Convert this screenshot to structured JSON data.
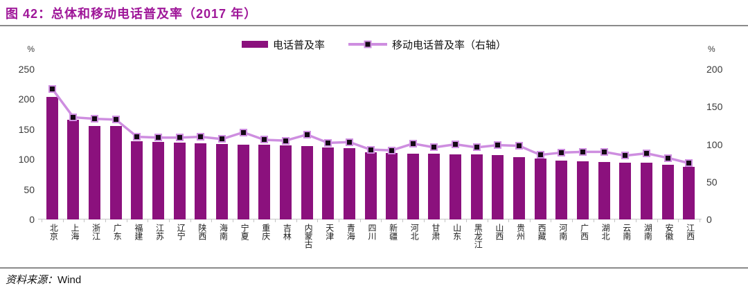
{
  "header": {
    "title": "图 42：总体和移动电话普及率（2017 年）"
  },
  "legend": {
    "bar_label": "电话普及率",
    "line_label": "移动电话普及率（右轴）"
  },
  "footer": {
    "source_label": "资料来源：",
    "source_value": "Wind"
  },
  "colors": {
    "title": "#9F1799",
    "bar": "#8B117D",
    "line": "#CE8EE0",
    "marker": "#140914",
    "separator": "#8A8A8A",
    "axis_text": "#3A3A3A"
  },
  "chart_data": {
    "type": "bar",
    "subtype": "bar+line-dual-axis",
    "title": "总体和移动电话普及率（2017 年）",
    "grid": false,
    "legend_position": "top",
    "categories": [
      "北京",
      "上海",
      "浙江",
      "广东",
      "福建",
      "江苏",
      "辽宁",
      "陕西",
      "海南",
      "宁夏",
      "重庆",
      "吉林",
      "内蒙古",
      "天津",
      "青海",
      "四川",
      "新疆",
      "河北",
      "甘肃",
      "山东",
      "黑龙江",
      "山西",
      "贵州",
      "西藏",
      "河南",
      "广西",
      "湖北",
      "云南",
      "湖南",
      "安徽",
      "江西"
    ],
    "series": [
      {
        "name": "电话普及率",
        "type": "bar",
        "axis": "left",
        "values": [
          204,
          166,
          156,
          155,
          130,
          129,
          128,
          127,
          126,
          125,
          124,
          123,
          122,
          120,
          119,
          112,
          111,
          110,
          109,
          108,
          108,
          107,
          104,
          101,
          98,
          97,
          96,
          95,
          94,
          91,
          88
        ]
      },
      {
        "name": "移动电话普及率（右轴）",
        "type": "line",
        "axis": "right",
        "values": [
          174,
          136,
          134,
          133,
          110,
          109,
          109,
          110,
          107,
          116,
          106,
          105,
          113,
          102,
          103,
          93,
          92,
          101,
          96,
          100,
          96,
          99,
          98,
          86,
          89,
          90,
          90,
          85,
          88,
          82,
          75
        ]
      }
    ],
    "left_axis": {
      "unit": "%",
      "min": 0,
      "max": 250,
      "ticks": [
        0,
        50,
        100,
        150,
        200,
        250
      ]
    },
    "right_axis": {
      "unit": "%",
      "min": 0,
      "max": 200,
      "ticks": [
        0,
        50,
        100,
        150,
        200
      ]
    }
  }
}
